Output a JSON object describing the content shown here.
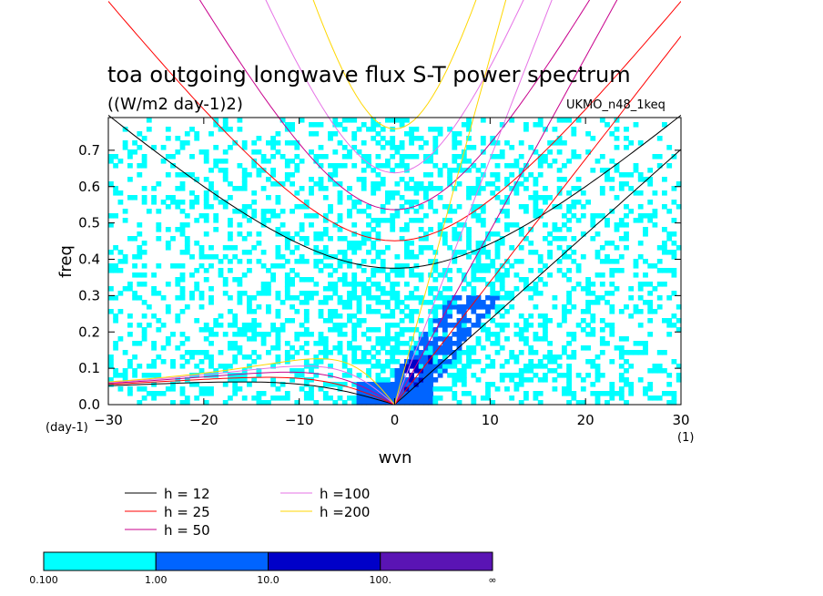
{
  "chart_data": {
    "type": "heatmap",
    "title": "toa outgoing longwave flux S-T power spectrum",
    "subtitle": "((W/m2 day-1)2)",
    "annotation": "UKMO_n48_1keq",
    "xlabel": "wvn",
    "ylabel": "freq",
    "x_unit": "(1)",
    "y_unit": "(day-1)",
    "xlim": [
      -30,
      30
    ],
    "ylim": [
      0,
      0.79
    ],
    "xticks": [
      -30,
      -20,
      -10,
      0,
      10,
      20,
      30
    ],
    "yticks": [
      0.0,
      0.1,
      0.2,
      0.3,
      0.4,
      0.5,
      0.6,
      0.7
    ],
    "ytick_labels": [
      "0.0",
      "0.1",
      "0.2",
      "0.3",
      "0.4",
      "0.5",
      "0.6",
      "0.7"
    ],
    "grid": false,
    "shading_levels": [
      {
        "from": "0.100",
        "to": "1.00",
        "color": "#00ffff"
      },
      {
        "from": "1.00",
        "to": "10.0",
        "color": "#0064ff"
      },
      {
        "from": "10.0",
        "to": "100.",
        "color": "#0000c8"
      },
      {
        "from": "100.",
        "to": "∞",
        "color": "#5a14b4"
      }
    ],
    "colorbar_labels": [
      "0.100",
      "1.00",
      "10.0",
      "100.",
      "∞"
    ],
    "series": [
      {
        "name": "h = 12",
        "equivalent_depth": 12,
        "color": "#000000"
      },
      {
        "name": "h = 25",
        "equivalent_depth": 25,
        "color": "#ff0000"
      },
      {
        "name": "h = 50",
        "equivalent_depth": 50,
        "color": "#c8008c"
      },
      {
        "name": "h =100",
        "equivalent_depth": 100,
        "color": "#e673e6"
      },
      {
        "name": "h =200",
        "equivalent_depth": 200,
        "color": "#ffd700"
      }
    ]
  }
}
